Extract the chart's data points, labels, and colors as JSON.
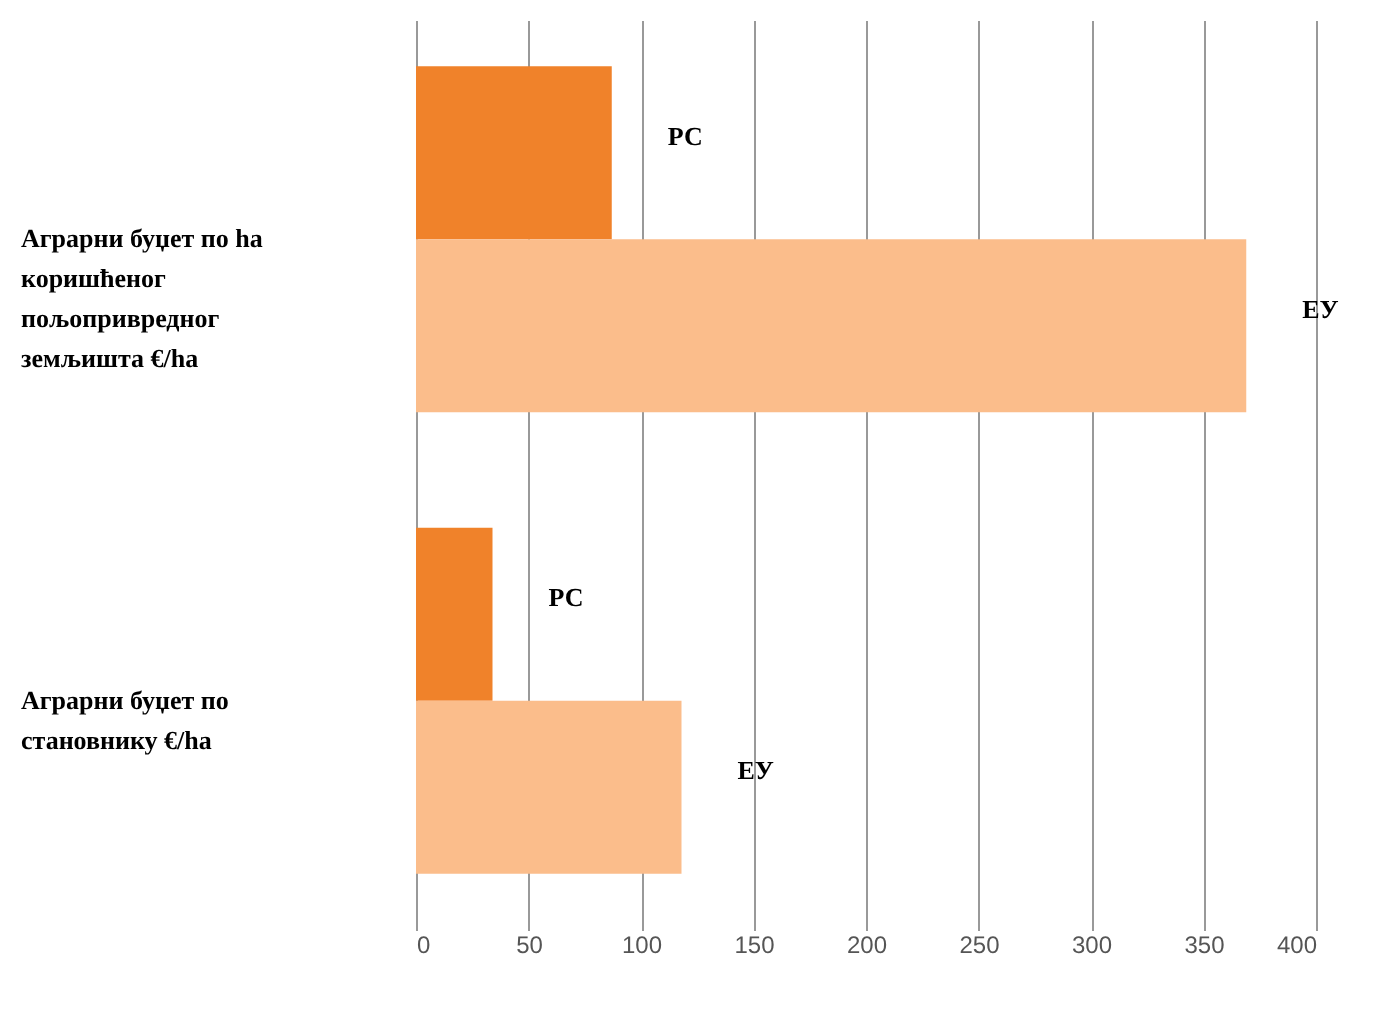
{
  "chart_data": {
    "type": "bar",
    "orientation": "horizontal",
    "categories": [
      "Аграрни буџет по ha коришћеног пољопривредног земљишта €/ha",
      "Аграрни буџет по становнику €/ha"
    ],
    "series": [
      {
        "name": "РС",
        "color": "#f0822a",
        "values": [
          87,
          34
        ]
      },
      {
        "name": "ЕУ",
        "color": "#fbbd8b",
        "values": [
          369,
          118
        ]
      }
    ],
    "xlim": [
      0,
      400
    ],
    "xticks": [
      0,
      50,
      100,
      150,
      200,
      250,
      300,
      350,
      400
    ],
    "grid": "x",
    "legend": false
  }
}
